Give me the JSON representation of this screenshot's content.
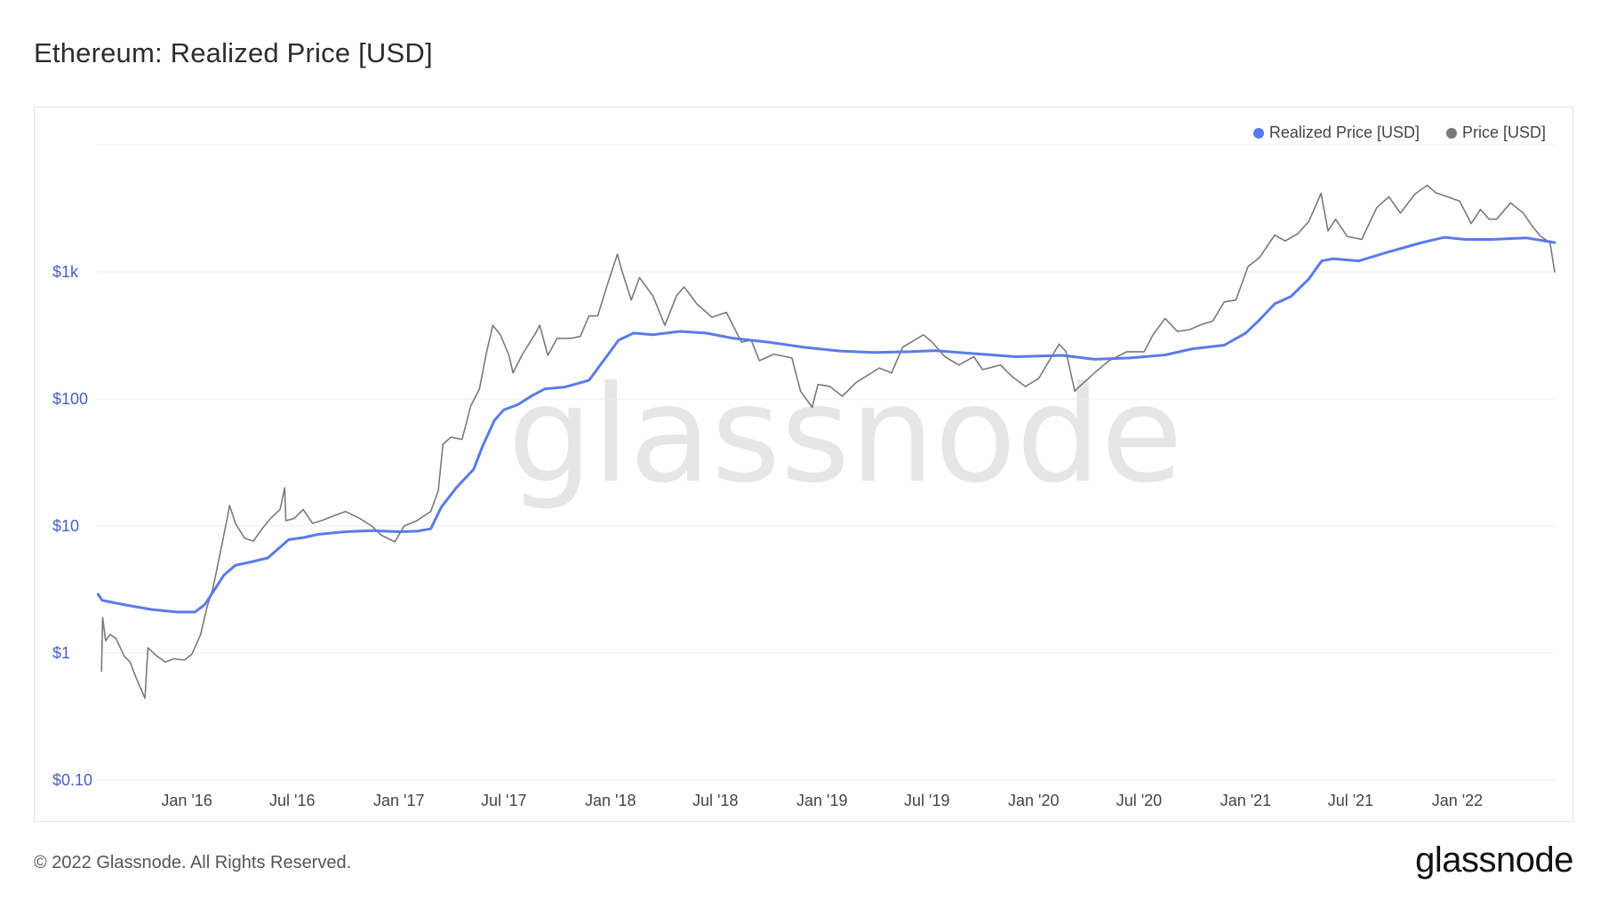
{
  "title": "Ethereum: Realized Price [USD]",
  "footer": {
    "copyright": "© 2022 Glassnode. All Rights Reserved.",
    "logo": "glassnode"
  },
  "watermark": "glassnode",
  "colors": {
    "realized": "#5b7be8",
    "price": "#7a7a7a",
    "grid": "#ececec",
    "ytick": "#4a5fc1",
    "watermark": "#e6e6e6"
  },
  "chart_data": {
    "type": "line",
    "title": "Ethereum: Realized Price [USD]",
    "xlabel": "",
    "ylabel": "",
    "yscale": "log",
    "ylim": [
      0.1,
      10000
    ],
    "xlim": [
      "2015-07-30",
      "2022-06-18"
    ],
    "grid": true,
    "legend": "top-right",
    "y_ticks": [
      {
        "value": 0.1,
        "label": "$0.10"
      },
      {
        "value": 1,
        "label": "$1"
      },
      {
        "value": 10,
        "label": "$10"
      },
      {
        "value": 100,
        "label": "$100"
      },
      {
        "value": 1000,
        "label": "$1k"
      }
    ],
    "x_ticks": [
      {
        "date": "2016-01-01",
        "label": "Jan '16"
      },
      {
        "date": "2016-07-01",
        "label": "Jul '16"
      },
      {
        "date": "2017-01-01",
        "label": "Jan '17"
      },
      {
        "date": "2017-07-01",
        "label": "Jul '17"
      },
      {
        "date": "2018-01-01",
        "label": "Jan '18"
      },
      {
        "date": "2018-07-01",
        "label": "Jul '18"
      },
      {
        "date": "2019-01-01",
        "label": "Jan '19"
      },
      {
        "date": "2019-07-01",
        "label": "Jul '19"
      },
      {
        "date": "2020-01-01",
        "label": "Jan '20"
      },
      {
        "date": "2020-07-01",
        "label": "Jul '20"
      },
      {
        "date": "2021-01-01",
        "label": "Jan '21"
      },
      {
        "date": "2021-07-01",
        "label": "Jul '21"
      },
      {
        "date": "2022-01-01",
        "label": "Jan '22"
      }
    ],
    "series": [
      {
        "name": "Realized Price [USD]",
        "color": "#5b7be8",
        "points": [
          [
            "2015-08-01",
            2.9
          ],
          [
            "2015-08-08",
            2.6
          ],
          [
            "2015-09-15",
            2.4
          ],
          [
            "2015-11-01",
            2.2
          ],
          [
            "2015-12-15",
            2.1
          ],
          [
            "2016-01-15",
            2.1
          ],
          [
            "2016-02-01",
            2.4
          ],
          [
            "2016-02-15",
            3.0
          ],
          [
            "2016-03-05",
            4.1
          ],
          [
            "2016-03-25",
            4.9
          ],
          [
            "2016-04-20",
            5.2
          ],
          [
            "2016-05-20",
            5.6
          ],
          [
            "2016-06-05",
            6.5
          ],
          [
            "2016-06-25",
            7.8
          ],
          [
            "2016-07-20",
            8.1
          ],
          [
            "2016-08-15",
            8.6
          ],
          [
            "2016-10-01",
            9.0
          ],
          [
            "2016-11-15",
            9.2
          ],
          [
            "2017-01-01",
            9.0
          ],
          [
            "2017-02-01",
            9.1
          ],
          [
            "2017-02-25",
            9.5
          ],
          [
            "2017-03-15",
            14.0
          ],
          [
            "2017-04-10",
            20.0
          ],
          [
            "2017-05-10",
            28.0
          ],
          [
            "2017-05-25",
            42.0
          ],
          [
            "2017-06-15",
            68.0
          ],
          [
            "2017-07-01",
            82.0
          ],
          [
            "2017-07-25",
            90.0
          ],
          [
            "2017-08-20",
            107.0
          ],
          [
            "2017-09-10",
            120.0
          ],
          [
            "2017-10-15",
            124.0
          ],
          [
            "2017-11-25",
            140.0
          ],
          [
            "2017-12-20",
            200.0
          ],
          [
            "2018-01-15",
            290.0
          ],
          [
            "2018-02-10",
            330.0
          ],
          [
            "2018-03-15",
            320.0
          ],
          [
            "2018-05-01",
            340.0
          ],
          [
            "2018-06-15",
            330.0
          ],
          [
            "2018-08-01",
            300.0
          ],
          [
            "2018-10-01",
            280.0
          ],
          [
            "2018-12-01",
            255.0
          ],
          [
            "2019-02-01",
            238.0
          ],
          [
            "2019-04-01",
            232.0
          ],
          [
            "2019-06-01",
            235.0
          ],
          [
            "2019-07-15",
            240.0
          ],
          [
            "2019-09-15",
            228.0
          ],
          [
            "2019-12-01",
            215.0
          ],
          [
            "2020-02-20",
            220.0
          ],
          [
            "2020-04-15",
            205.0
          ],
          [
            "2020-06-15",
            210.0
          ],
          [
            "2020-08-15",
            222.0
          ],
          [
            "2020-10-01",
            248.0
          ],
          [
            "2020-11-25",
            265.0
          ],
          [
            "2021-01-01",
            330.0
          ],
          [
            "2021-01-25",
            420.0
          ],
          [
            "2021-02-20",
            560.0
          ],
          [
            "2021-03-20",
            640.0
          ],
          [
            "2021-04-20",
            880.0
          ],
          [
            "2021-05-12",
            1220.0
          ],
          [
            "2021-06-01",
            1270.0
          ],
          [
            "2021-07-15",
            1220.0
          ],
          [
            "2021-09-01",
            1420.0
          ],
          [
            "2021-11-01",
            1700.0
          ],
          [
            "2021-12-10",
            1870.0
          ],
          [
            "2022-01-15",
            1800.0
          ],
          [
            "2022-03-01",
            1800.0
          ],
          [
            "2022-05-01",
            1850.0
          ],
          [
            "2022-06-18",
            1700.0
          ]
        ]
      },
      {
        "name": "Price [USD]",
        "color": "#7a7a7a",
        "points": [
          [
            "2015-08-07",
            0.72
          ],
          [
            "2015-08-09",
            1.9
          ],
          [
            "2015-08-14",
            1.25
          ],
          [
            "2015-08-22",
            1.4
          ],
          [
            "2015-09-01",
            1.3
          ],
          [
            "2015-09-15",
            0.95
          ],
          [
            "2015-09-25",
            0.85
          ],
          [
            "2015-10-05",
            0.65
          ],
          [
            "2015-10-21",
            0.44
          ],
          [
            "2015-10-26",
            1.1
          ],
          [
            "2015-11-10",
            0.95
          ],
          [
            "2015-11-25",
            0.85
          ],
          [
            "2015-12-10",
            0.9
          ],
          [
            "2015-12-28",
            0.88
          ],
          [
            "2016-01-10",
            0.98
          ],
          [
            "2016-01-25",
            1.4
          ],
          [
            "2016-02-05",
            2.3
          ],
          [
            "2016-02-15",
            3.2
          ],
          [
            "2016-02-28",
            6.2
          ],
          [
            "2016-03-10",
            11.0
          ],
          [
            "2016-03-15",
            14.5
          ],
          [
            "2016-03-25",
            10.5
          ],
          [
            "2016-04-10",
            8.0
          ],
          [
            "2016-04-25",
            7.6
          ],
          [
            "2016-05-10",
            9.5
          ],
          [
            "2016-05-25",
            11.5
          ],
          [
            "2016-06-10",
            13.5
          ],
          [
            "2016-06-18",
            20.0
          ],
          [
            "2016-06-20",
            11.0
          ],
          [
            "2016-07-05",
            11.5
          ],
          [
            "2016-07-20",
            13.5
          ],
          [
            "2016-08-05",
            10.5
          ],
          [
            "2016-08-20",
            11.0
          ],
          [
            "2016-09-10",
            12.0
          ],
          [
            "2016-10-01",
            13.0
          ],
          [
            "2016-10-25",
            11.5
          ],
          [
            "2016-11-15",
            10.0
          ],
          [
            "2016-12-01",
            8.5
          ],
          [
            "2016-12-25",
            7.5
          ],
          [
            "2017-01-10",
            10.0
          ],
          [
            "2017-02-01",
            11.0
          ],
          [
            "2017-02-25",
            13.0
          ],
          [
            "2017-03-10",
            19.0
          ],
          [
            "2017-03-18",
            44.0
          ],
          [
            "2017-04-01",
            50.0
          ],
          [
            "2017-04-20",
            48.0
          ],
          [
            "2017-05-05",
            88.0
          ],
          [
            "2017-05-20",
            120.0
          ],
          [
            "2017-06-01",
            230.0
          ],
          [
            "2017-06-12",
            380.0
          ],
          [
            "2017-06-25",
            320.0
          ],
          [
            "2017-07-10",
            220.0
          ],
          [
            "2017-07-17",
            160.0
          ],
          [
            "2017-08-01",
            220.0
          ],
          [
            "2017-08-25",
            330.0
          ],
          [
            "2017-09-01",
            380.0
          ],
          [
            "2017-09-15",
            220.0
          ],
          [
            "2017-10-01",
            300.0
          ],
          [
            "2017-10-25",
            300.0
          ],
          [
            "2017-11-10",
            310.0
          ],
          [
            "2017-11-25",
            450.0
          ],
          [
            "2017-12-10",
            450.0
          ],
          [
            "2017-12-25",
            750.0
          ],
          [
            "2018-01-13",
            1380.0
          ],
          [
            "2018-01-20",
            1050.0
          ],
          [
            "2018-02-06",
            600.0
          ],
          [
            "2018-02-20",
            900.0
          ],
          [
            "2018-03-15",
            650.0
          ],
          [
            "2018-04-05",
            380.0
          ],
          [
            "2018-04-25",
            650.0
          ],
          [
            "2018-05-08",
            760.0
          ],
          [
            "2018-05-30",
            560.0
          ],
          [
            "2018-06-25",
            440.0
          ],
          [
            "2018-07-20",
            480.0
          ],
          [
            "2018-08-15",
            280.0
          ],
          [
            "2018-09-01",
            290.0
          ],
          [
            "2018-09-15",
            200.0
          ],
          [
            "2018-10-10",
            225.0
          ],
          [
            "2018-11-10",
            210.0
          ],
          [
            "2018-11-25",
            115.0
          ],
          [
            "2018-12-15",
            86.0
          ],
          [
            "2018-12-25",
            130.0
          ],
          [
            "2019-01-15",
            125.0
          ],
          [
            "2019-02-05",
            105.0
          ],
          [
            "2019-03-01",
            135.0
          ],
          [
            "2019-04-10",
            175.0
          ],
          [
            "2019-05-01",
            160.0
          ],
          [
            "2019-05-20",
            255.0
          ],
          [
            "2019-06-25",
            320.0
          ],
          [
            "2019-07-10",
            280.0
          ],
          [
            "2019-08-01",
            215.0
          ],
          [
            "2019-08-25",
            185.0
          ],
          [
            "2019-09-20",
            215.0
          ],
          [
            "2019-10-05",
            170.0
          ],
          [
            "2019-11-05",
            185.0
          ],
          [
            "2019-11-25",
            150.0
          ],
          [
            "2019-12-18",
            125.0
          ],
          [
            "2020-01-10",
            145.0
          ],
          [
            "2020-02-14",
            270.0
          ],
          [
            "2020-02-26",
            235.0
          ],
          [
            "2020-03-12",
            115.0
          ],
          [
            "2020-03-20",
            125.0
          ],
          [
            "2020-04-15",
            160.0
          ],
          [
            "2020-05-10",
            200.0
          ],
          [
            "2020-06-10",
            235.0
          ],
          [
            "2020-07-10",
            235.0
          ],
          [
            "2020-07-25",
            320.0
          ],
          [
            "2020-08-15",
            430.0
          ],
          [
            "2020-09-05",
            340.0
          ],
          [
            "2020-09-25",
            350.0
          ],
          [
            "2020-10-20",
            390.0
          ],
          [
            "2020-11-05",
            410.0
          ],
          [
            "2020-11-25",
            580.0
          ],
          [
            "2020-12-15",
            600.0
          ],
          [
            "2021-01-05",
            1100.0
          ],
          [
            "2021-01-25",
            1300.0
          ],
          [
            "2021-02-20",
            1950.0
          ],
          [
            "2021-03-10",
            1750.0
          ],
          [
            "2021-04-01",
            2000.0
          ],
          [
            "2021-04-20",
            2500.0
          ],
          [
            "2021-05-11",
            4150.0
          ],
          [
            "2021-05-23",
            2100.0
          ],
          [
            "2021-06-05",
            2600.0
          ],
          [
            "2021-06-25",
            1900.0
          ],
          [
            "2021-07-20",
            1800.0
          ],
          [
            "2021-08-15",
            3200.0
          ],
          [
            "2021-09-05",
            3900.0
          ],
          [
            "2021-09-25",
            2900.0
          ],
          [
            "2021-10-20",
            4100.0
          ],
          [
            "2021-11-10",
            4800.0
          ],
          [
            "2021-11-25",
            4200.0
          ],
          [
            "2021-12-15",
            3900.0
          ],
          [
            "2022-01-05",
            3600.0
          ],
          [
            "2022-01-25",
            2400.0
          ],
          [
            "2022-02-10",
            3100.0
          ],
          [
            "2022-02-25",
            2600.0
          ],
          [
            "2022-03-10",
            2600.0
          ],
          [
            "2022-04-03",
            3500.0
          ],
          [
            "2022-04-25",
            2900.0
          ],
          [
            "2022-05-10",
            2300.0
          ],
          [
            "2022-05-25",
            1900.0
          ],
          [
            "2022-06-10",
            1700.0
          ],
          [
            "2022-06-18",
            1000.0
          ]
        ]
      }
    ]
  }
}
